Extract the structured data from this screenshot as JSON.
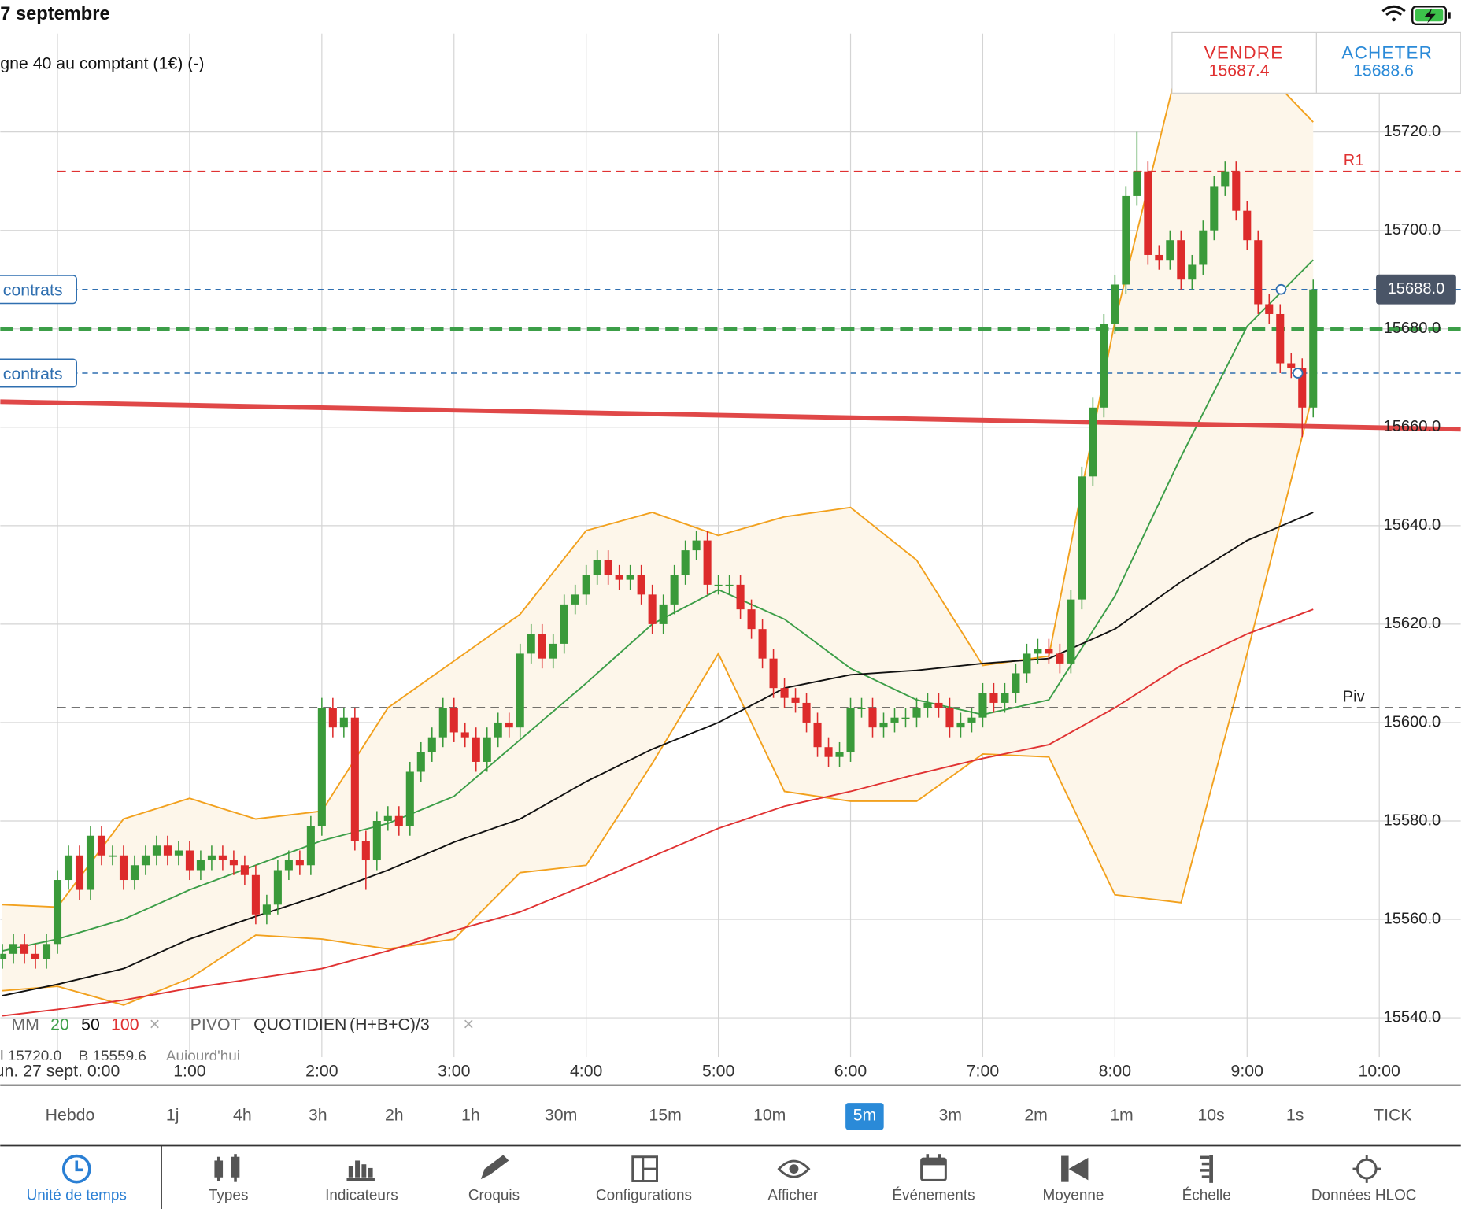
{
  "status_bar": {
    "date": "7 septembre"
  },
  "instrument": "gne 40 au comptant (1€) (-)",
  "quote": {
    "sell_label": "VENDRE",
    "sell": 15687.4,
    "buy_label": "ACHETER",
    "buy": 15688.6
  },
  "chart_data": {
    "type": "candlestick",
    "up_color": "#3a9a3a",
    "down_color": "#dd2b2b",
    "x": [
      -25,
      -20,
      -15,
      -10,
      -5,
      0,
      5,
      10,
      15,
      20,
      25,
      30,
      35,
      40,
      45,
      50,
      55,
      60,
      65,
      70,
      75,
      80,
      85,
      90,
      95,
      100,
      105,
      110,
      115,
      120,
      125,
      130,
      135,
      140,
      145,
      150,
      155,
      160,
      165,
      170,
      175,
      180,
      185,
      190,
      195,
      200,
      205,
      210,
      215,
      220,
      225,
      230,
      235,
      240,
      245,
      250,
      255,
      260,
      265,
      270,
      275,
      280,
      285,
      290,
      295,
      300,
      305,
      310,
      315,
      320,
      325,
      330,
      335,
      340,
      345,
      350,
      355,
      360,
      365,
      370,
      375,
      380,
      385,
      390,
      395,
      400,
      405,
      410,
      415,
      420,
      425,
      430,
      435,
      440,
      445,
      450,
      455,
      460,
      465,
      470,
      475,
      480,
      485,
      490,
      495,
      500,
      505,
      510,
      515,
      520,
      525,
      530,
      535,
      540,
      545,
      550,
      555,
      560,
      565,
      570
    ],
    "open": [
      15552,
      15553,
      15555,
      15553,
      15552,
      15555,
      15568,
      15573,
      15566,
      15577,
      15573,
      15573,
      15568,
      15571,
      15573,
      15575,
      15573,
      15574,
      15570,
      15572,
      15573,
      15572,
      15571,
      15569,
      15561,
      15563,
      15570,
      15572,
      15571,
      15579,
      15603,
      15599,
      15601,
      15576,
      15572,
      15580,
      15581,
      15579,
      15590,
      15594,
      15597,
      15603,
      15598,
      15597,
      15592,
      15597,
      15600,
      15599,
      15614,
      15618,
      15613,
      15616,
      15624,
      15626,
      15630,
      15633,
      15630,
      15629,
      15630,
      15626,
      15620,
      15624,
      15630,
      15635,
      15637,
      15628,
      15628,
      15628,
      15623,
      15619,
      15613,
      15607,
      15605,
      15604,
      15600,
      15595,
      15593,
      15594,
      15603,
      15603,
      15599,
      15600,
      15601,
      15601,
      15603,
      15604,
      15603,
      15599,
      15600,
      15601,
      15606,
      15604,
      15606,
      15610,
      15614,
      15615,
      15614,
      15612,
      15625,
      15650,
      15664,
      15681,
      15689,
      15707,
      15712,
      15695,
      15694,
      15698,
      15690,
      15693,
      15700,
      15709,
      15712,
      15704,
      15698,
      15685,
      15683,
      15673,
      15672,
      15664
    ],
    "high": [
      15555,
      15557,
      15557,
      15555,
      15557,
      15570,
      15575,
      15575,
      15579,
      15579,
      15575,
      15575,
      15573,
      15575,
      15577,
      15577,
      15576,
      15576,
      15574,
      15575,
      15575,
      15574,
      15573,
      15571,
      15565,
      15572,
      15574,
      15574,
      15581,
      15605,
      15605,
      15603,
      15603,
      15578,
      15582,
      15583,
      15583,
      15592,
      15596,
      15599,
      15605,
      15605,
      15600,
      15599,
      15599,
      15602,
      15602,
      15616,
      15620,
      15620,
      15618,
      15626,
      15628,
      15632,
      15635,
      15635,
      15632,
      15632,
      15632,
      15628,
      15626,
      15632,
      15637,
      15639,
      15639,
      15630,
      15630,
      15630,
      15625,
      15621,
      15615,
      15609,
      15607,
      15606,
      15602,
      15597,
      15596,
      15605,
      15605,
      15605,
      15602,
      15603,
      15603,
      15605,
      15606,
      15606,
      15605,
      15602,
      15603,
      15608,
      15608,
      15608,
      15612,
      15616,
      15617,
      15617,
      15616,
      15627,
      15652,
      15666,
      15683,
      15691,
      15709,
      15720,
      15714,
      15697,
      15700,
      15700,
      15695,
      15702,
      15711,
      15714,
      15714,
      15706,
      15700,
      15687,
      15685,
      15675,
      15674,
      15690
    ],
    "low": [
      15550,
      15551,
      15551,
      15550,
      15550,
      15553,
      15566,
      15564,
      15564,
      15571,
      15571,
      15566,
      15566,
      15569,
      15571,
      15571,
      15571,
      15568,
      15568,
      15570,
      15570,
      15569,
      15567,
      15559,
      15559,
      15561,
      15568,
      15569,
      15569,
      15577,
      15597,
      15597,
      15574,
      15566,
      15570,
      15578,
      15577,
      15577,
      15588,
      15592,
      15595,
      15596,
      15595,
      15590,
      15590,
      15595,
      15597,
      15597,
      15612,
      15611,
      15611,
      15614,
      15622,
      15624,
      15628,
      15628,
      15627,
      15627,
      15624,
      15618,
      15618,
      15622,
      15628,
      15633,
      15626,
      15626,
      15626,
      15621,
      15617,
      15611,
      15605,
      15603,
      15602,
      15598,
      15593,
      15591,
      15591,
      15592,
      15601,
      15597,
      15597,
      15598,
      15599,
      15599,
      15601,
      15601,
      15597,
      15597,
      15598,
      15599,
      15602,
      15602,
      15604,
      15608,
      15612,
      15612,
      15610,
      15610,
      15623,
      15648,
      15662,
      15679,
      15687,
      15705,
      15693,
      15692,
      15692,
      15688,
      15688,
      15691,
      15698,
      15707,
      15702,
      15696,
      15683,
      15681,
      15671,
      15670,
      15658,
      15662
    ],
    "close": [
      15553,
      15555,
      15553,
      15552,
      15555,
      15568,
      15573,
      15566,
      15577,
      15573,
      15573,
      15568,
      15571,
      15573,
      15575,
      15573,
      15574,
      15570,
      15572,
      15573,
      15572,
      15571,
      15569,
      15561,
      15563,
      15570,
      15572,
      15571,
      15579,
      15603,
      15599,
      15601,
      15576,
      15572,
      15580,
      15581,
      15579,
      15590,
      15594,
      15597,
      15603,
      15598,
      15597,
      15592,
      15597,
      15600,
      15599,
      15614,
      15618,
      15613,
      15616,
      15624,
      15626,
      15630,
      15633,
      15630,
      15629,
      15630,
      15626,
      15620,
      15624,
      15630,
      15635,
      15637,
      15628,
      15628,
      15628,
      15623,
      15619,
      15613,
      15607,
      15605,
      15604,
      15600,
      15595,
      15593,
      15594,
      15603,
      15603,
      15599,
      15600,
      15601,
      15601,
      15603,
      15604,
      15603,
      15599,
      15600,
      15601,
      15606,
      15604,
      15606,
      15610,
      15614,
      15615,
      15614,
      15612,
      15625,
      15650,
      15664,
      15681,
      15689,
      15707,
      15712,
      15695,
      15694,
      15698,
      15690,
      15693,
      15700,
      15709,
      15712,
      15704,
      15698,
      15685,
      15683,
      15673,
      15672,
      15664,
      15688
    ],
    "line_x": [
      -25,
      0,
      30,
      60,
      90,
      120,
      150,
      180,
      210,
      240,
      270,
      300,
      330,
      360,
      390,
      420,
      450,
      480,
      510,
      540,
      570
    ],
    "bollinger": {
      "color": "#f2a11e",
      "fill": "#fdf6ea",
      "upper": [
        15563,
        15562.5,
        15580.4,
        15584.6,
        15580.4,
        15582,
        15603,
        15612.5,
        15622,
        15639,
        15642.7,
        15638,
        15641.8,
        15643.7,
        15633,
        15611.6,
        15613.5,
        15681.5,
        15736,
        15736,
        15722
      ],
      "lower": [
        15545.5,
        15546.4,
        15542.6,
        15548,
        15556.8,
        15556,
        15554,
        15556,
        15569.5,
        15571,
        15591.7,
        15614,
        15586,
        15584,
        15584,
        15593.6,
        15593,
        15565,
        15563.4,
        15614,
        15667
      ]
    },
    "lines": [
      {
        "period": 20,
        "color": "#3c9e48",
        "values": [
          15553.6,
          15556,
          15560,
          15566,
          15571,
          15576,
          15579.5,
          15585,
          15596.5,
          15608,
          15620,
          15627,
          15621,
          15611,
          15604.6,
          15601.6,
          15604.6,
          15625.7,
          15654,
          15680.5,
          15694
        ]
      },
      {
        "period": 50,
        "color": "#111111",
        "values": [
          15544.5,
          15546.8,
          15550,
          15556,
          15560.6,
          15565,
          15570,
          15575.7,
          15580.4,
          15588,
          15594.6,
          15600,
          15607,
          15609.7,
          15610.6,
          15612,
          15613,
          15619,
          15628.6,
          15637,
          15642.7
        ]
      },
      {
        "period": 100,
        "color": "#e03232",
        "values": [
          15540.4,
          15541.7,
          15543.6,
          15546,
          15548,
          15550,
          15553.6,
          15557.7,
          15561.5,
          15567,
          15572.8,
          15578.5,
          15583,
          15586,
          15589.5,
          15592.7,
          15595.5,
          15603,
          15611.6,
          15618,
          15623
        ]
      }
    ],
    "levels": [
      {
        "label": "R1",
        "value": 15712,
        "color": "#e03232"
      },
      {
        "label": "Piv",
        "value": 15603,
        "color": "#222222"
      }
    ],
    "stop_level": {
      "value": 15680,
      "color": "#3c9e48"
    },
    "trendline": {
      "x": [
        -26,
        637
      ],
      "values": [
        15665.2,
        15659.6
      ],
      "color": "#e04848"
    },
    "orders": [
      {
        "label": "contrats",
        "value": 15688,
        "color": "#2f6fb0"
      },
      {
        "label": "contrats",
        "value": 15671,
        "color": "#2f6fb0"
      }
    ],
    "current_price": {
      "value": 15688,
      "label": "15688.0"
    },
    "xlim": [
      -26,
      637
    ],
    "xticks": [
      {
        "value": 0,
        "label": "un. 27 sept. 0:00"
      },
      {
        "value": 60,
        "label": "1:00"
      },
      {
        "value": 120,
        "label": "2:00"
      },
      {
        "value": 180,
        "label": "3:00"
      },
      {
        "value": 240,
        "label": "4:00"
      },
      {
        "value": 300,
        "label": "5:00"
      },
      {
        "value": 360,
        "label": "6:00"
      },
      {
        "value": 420,
        "label": "7:00"
      },
      {
        "value": 480,
        "label": "8:00"
      },
      {
        "value": 540,
        "label": "9:00"
      },
      {
        "value": 600,
        "label": "10:00"
      }
    ],
    "ylim": [
      15532,
      15740
    ],
    "yticks": [
      {
        "value": 15540,
        "label": "15540.0"
      },
      {
        "value": 15560,
        "label": "15560.0"
      },
      {
        "value": 15580,
        "label": "15580.0"
      },
      {
        "value": 15600,
        "label": "15600.0"
      },
      {
        "value": 15620,
        "label": "15620.0"
      },
      {
        "value": 15640,
        "label": "15640.0"
      },
      {
        "value": 15660,
        "label": "15660.0"
      },
      {
        "value": 15680,
        "label": "15680.0"
      },
      {
        "value": 15700,
        "label": "15700.0"
      },
      {
        "value": 15720,
        "label": "15720.0"
      }
    ],
    "grid": true
  },
  "legend": {
    "ma_label": "MM",
    "ma_close": "×",
    "pivot": "PIVOT",
    "pivot_period": "QUOTIDIEN",
    "pivot_formula": "(H+B+C)/3",
    "pivot_close": "×"
  },
  "session_info": [
    "l 15720.0",
    "B 15559.6",
    "Aujourd'hui"
  ],
  "timeframes": [
    "Hebdo",
    "1j",
    "4h",
    "3h",
    "2h",
    "1h",
    "30m",
    "15m",
    "10m",
    "5m",
    "3m",
    "2m",
    "1m",
    "10s",
    "1s",
    "TICK"
  ],
  "active_timeframe": "5m",
  "tabs": [
    "Unité de temps",
    "Types",
    "Indicateurs",
    "Croquis",
    "Configurations",
    "Afficher",
    "Événements",
    "Moyenne",
    "Échelle",
    "Données HLOC"
  ],
  "active_tab": "Unité de temps"
}
